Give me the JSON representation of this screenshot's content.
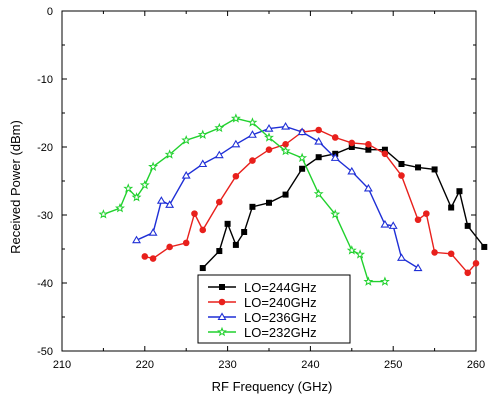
{
  "chart_data": {
    "type": "line",
    "xlabel": "RF Frequency (GHz)",
    "ylabel": "Received Power (dBm)",
    "xlim": [
      210,
      260
    ],
    "ylim": [
      -50,
      0
    ],
    "xticks": [
      210,
      220,
      230,
      240,
      250,
      260
    ],
    "yticks": [
      0,
      -10,
      -20,
      -30,
      -40,
      -50
    ],
    "grid": false,
    "legend_position": "bottom-center",
    "series": [
      {
        "name": "LO=244GHz",
        "color": "#000000",
        "marker": "filled-square",
        "x": [
          227,
          229,
          230,
          231,
          232,
          233,
          235,
          237,
          239,
          241,
          243,
          245,
          247,
          249,
          251,
          253,
          255,
          257,
          258,
          259,
          261
        ],
        "y": [
          -37.8,
          -35.3,
          -31.3,
          -34.4,
          -32.5,
          -28.8,
          -28.2,
          -27,
          -23.2,
          -21.5,
          -21,
          -20,
          -20.4,
          -20.4,
          -22.5,
          -23,
          -23.3,
          -28.9,
          -26.5,
          -31.6,
          -34.7
        ]
      },
      {
        "name": "LO=240GHz",
        "color": "#e8201c",
        "marker": "filled-circle",
        "x": [
          220,
          221,
          223,
          225,
          226,
          227,
          229,
          231,
          233,
          235,
          237,
          239,
          241,
          243,
          245,
          247,
          249,
          251,
          253,
          254,
          255,
          257,
          259,
          260
        ],
        "y": [
          -36.1,
          -36.4,
          -34.7,
          -34.1,
          -29.8,
          -32.2,
          -28.1,
          -24.3,
          -22,
          -20.4,
          -19.6,
          -17.8,
          -17.5,
          -18.6,
          -19.4,
          -19.6,
          -21,
          -24.2,
          -30.7,
          -29.8,
          -35.5,
          -35.7,
          -38.5,
          -37.1
        ]
      },
      {
        "name": "LO=236GHz",
        "color": "#1f2fd6",
        "marker": "open-triangle",
        "x": [
          219,
          221,
          222,
          223,
          225,
          227,
          229,
          231,
          233,
          235,
          237,
          239,
          241,
          243,
          245,
          247,
          249,
          250,
          251,
          253
        ],
        "y": [
          -33.7,
          -32.6,
          -27.9,
          -28.5,
          -24.2,
          -22.5,
          -21.2,
          -19.6,
          -18.2,
          -17.3,
          -17,
          -17.8,
          -19.2,
          -21.6,
          -23.6,
          -26.1,
          -31.4,
          -31.6,
          -36.3,
          -37.8
        ]
      },
      {
        "name": "LO=232GHz",
        "color": "#21d12e",
        "marker": "open-star",
        "x": [
          215,
          217,
          218,
          219,
          220,
          221,
          223,
          225,
          227,
          229,
          231,
          233,
          235,
          237,
          239,
          241,
          243,
          245,
          246,
          247,
          249
        ],
        "y": [
          -29.9,
          -29,
          -26.1,
          -27.4,
          -25.6,
          -22.9,
          -21.1,
          -19,
          -18.2,
          -17.2,
          -15.8,
          -16.4,
          -18.6,
          -20.6,
          -21.6,
          -26.9,
          -29.9,
          -35.2,
          -35.8,
          -39.8,
          -39.8
        ]
      }
    ]
  }
}
